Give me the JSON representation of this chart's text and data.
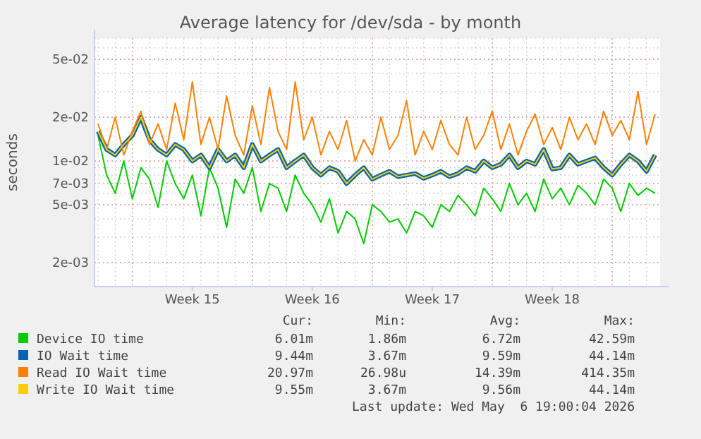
{
  "chart_data": {
    "type": "line",
    "title": "Average latency for /dev/sda - by month",
    "ylabel": "seconds",
    "log": "y",
    "grid": true,
    "legend": "bottom",
    "marker": "none",
    "line_style": "solid",
    "xlim": [
      "2026-04-03T19:00",
      "2026-05-06T19:00"
    ],
    "xticks": [
      {
        "value": "2026-04-06",
        "label": null
      },
      {
        "value": "2026-04-09T12:00",
        "label": "Week 15"
      },
      {
        "value": "2026-04-13",
        "label": null
      },
      {
        "value": "2026-04-16T12:00",
        "label": "Week 16"
      },
      {
        "value": "2026-04-20",
        "label": null
      },
      {
        "value": "2026-04-23T12:00",
        "label": "Week 17"
      },
      {
        "value": "2026-04-27",
        "label": null
      },
      {
        "value": "2026-04-30T12:00",
        "label": "Week 18"
      },
      {
        "value": "2026-05-04",
        "label": null
      }
    ],
    "ylim": [
      0.00137,
      0.07
    ],
    "yticks": [
      {
        "value": 0.002,
        "label": "2e-03"
      },
      {
        "value": 0.005,
        "label": "5e-03"
      },
      {
        "value": 0.007,
        "label": "7e-03"
      },
      {
        "value": 0.01,
        "label": "1e-02"
      },
      {
        "value": 0.02,
        "label": "2e-02"
      },
      {
        "value": 0.05,
        "label": "5e-02"
      }
    ],
    "x": [
      "2026-04-04T00:00",
      "2026-04-04T12:00",
      "2026-04-05T00:00",
      "2026-04-05T12:00",
      "2026-04-06T00:00",
      "2026-04-06T12:00",
      "2026-04-07T00:00",
      "2026-04-07T12:00",
      "2026-04-08T00:00",
      "2026-04-08T12:00",
      "2026-04-09T00:00",
      "2026-04-09T12:00",
      "2026-04-10T00:00",
      "2026-04-10T12:00",
      "2026-04-11T00:00",
      "2026-04-11T12:00",
      "2026-04-12T00:00",
      "2026-04-12T12:00",
      "2026-04-13T00:00",
      "2026-04-13T12:00",
      "2026-04-14T00:00",
      "2026-04-14T12:00",
      "2026-04-15T00:00",
      "2026-04-15T12:00",
      "2026-04-16T00:00",
      "2026-04-16T12:00",
      "2026-04-17T00:00",
      "2026-04-17T12:00",
      "2026-04-18T00:00",
      "2026-04-18T12:00",
      "2026-04-19T00:00",
      "2026-04-19T12:00",
      "2026-04-20T00:00",
      "2026-04-20T12:00",
      "2026-04-21T00:00",
      "2026-04-21T12:00",
      "2026-04-22T00:00",
      "2026-04-22T12:00",
      "2026-04-23T00:00",
      "2026-04-23T12:00",
      "2026-04-24T00:00",
      "2026-04-24T12:00",
      "2026-04-25T00:00",
      "2026-04-25T12:00",
      "2026-04-26T00:00",
      "2026-04-26T12:00",
      "2026-04-27T00:00",
      "2026-04-27T12:00",
      "2026-04-28T00:00",
      "2026-04-28T12:00",
      "2026-04-29T00:00",
      "2026-04-29T12:00",
      "2026-04-30T00:00",
      "2026-04-30T12:00",
      "2026-05-01T00:00",
      "2026-05-01T12:00",
      "2026-05-02T00:00",
      "2026-05-02T12:00",
      "2026-05-03T00:00",
      "2026-05-03T12:00",
      "2026-05-04T00:00",
      "2026-05-04T12:00",
      "2026-05-05T00:00",
      "2026-05-05T12:00",
      "2026-05-06T00:00",
      "2026-05-06T12:00"
    ],
    "series": [
      {
        "name": "Device IO time",
        "color": "#00cc00",
        "values": [
          0.015,
          0.008,
          0.006,
          0.01,
          0.0055,
          0.009,
          0.0075,
          0.0048,
          0.01,
          0.007,
          0.0055,
          0.008,
          0.0042,
          0.009,
          0.0065,
          0.0035,
          0.0075,
          0.006,
          0.009,
          0.0045,
          0.007,
          0.0065,
          0.0045,
          0.008,
          0.006,
          0.005,
          0.0038,
          0.0055,
          0.0032,
          0.0045,
          0.004,
          0.0027,
          0.005,
          0.0045,
          0.0038,
          0.004,
          0.0032,
          0.0045,
          0.0042,
          0.0035,
          0.005,
          0.0045,
          0.0058,
          0.005,
          0.0042,
          0.0065,
          0.0055,
          0.0045,
          0.007,
          0.005,
          0.006,
          0.0045,
          0.0075,
          0.0055,
          0.0065,
          0.005,
          0.0068,
          0.006,
          0.005,
          0.0075,
          0.0065,
          0.0045,
          0.007,
          0.0058,
          0.0065,
          0.006
        ]
      },
      {
        "name": "IO Wait time",
        "color": "#0066b3",
        "values": [
          0.016,
          0.012,
          0.011,
          0.013,
          0.015,
          0.02,
          0.014,
          0.012,
          0.011,
          0.013,
          0.012,
          0.01,
          0.011,
          0.009,
          0.012,
          0.01,
          0.011,
          0.009,
          0.013,
          0.01,
          0.011,
          0.012,
          0.009,
          0.01,
          0.011,
          0.009,
          0.008,
          0.009,
          0.0085,
          0.007,
          0.008,
          0.009,
          0.0075,
          0.008,
          0.0085,
          0.0078,
          0.008,
          0.0082,
          0.0076,
          0.008,
          0.0085,
          0.0078,
          0.0082,
          0.009,
          0.0085,
          0.01,
          0.009,
          0.0095,
          0.011,
          0.009,
          0.01,
          0.0095,
          0.012,
          0.0088,
          0.009,
          0.011,
          0.0095,
          0.01,
          0.0105,
          0.009,
          0.008,
          0.0095,
          0.011,
          0.01,
          0.0085,
          0.011
        ]
      },
      {
        "name": "Read IO Wait time",
        "color": "#ff8000",
        "values": [
          0.018,
          0.012,
          0.02,
          0.011,
          0.016,
          0.022,
          0.013,
          0.018,
          0.012,
          0.025,
          0.014,
          0.035,
          0.013,
          0.02,
          0.012,
          0.028,
          0.015,
          0.011,
          0.024,
          0.013,
          0.032,
          0.016,
          0.012,
          0.035,
          0.014,
          0.02,
          0.011,
          0.016,
          0.012,
          0.019,
          0.01,
          0.014,
          0.011,
          0.02,
          0.012,
          0.015,
          0.026,
          0.011,
          0.016,
          0.012,
          0.019,
          0.013,
          0.011,
          0.02,
          0.012,
          0.015,
          0.022,
          0.012,
          0.018,
          0.011,
          0.016,
          0.021,
          0.013,
          0.017,
          0.012,
          0.02,
          0.014,
          0.018,
          0.013,
          0.022,
          0.015,
          0.019,
          0.014,
          0.03,
          0.013,
          0.021
        ]
      },
      {
        "name": "Write IO Wait time",
        "color": "#ffcc00",
        "values": [
          0.016,
          0.012,
          0.011,
          0.013,
          0.015,
          0.02,
          0.014,
          0.012,
          0.011,
          0.013,
          0.012,
          0.01,
          0.011,
          0.009,
          0.012,
          0.01,
          0.011,
          0.009,
          0.013,
          0.01,
          0.011,
          0.012,
          0.009,
          0.01,
          0.011,
          0.009,
          0.008,
          0.009,
          0.0085,
          0.007,
          0.008,
          0.009,
          0.0075,
          0.008,
          0.0085,
          0.0078,
          0.008,
          0.0082,
          0.0076,
          0.008,
          0.0085,
          0.0078,
          0.0082,
          0.009,
          0.0085,
          0.01,
          0.009,
          0.0095,
          0.011,
          0.009,
          0.01,
          0.0095,
          0.012,
          0.0088,
          0.009,
          0.011,
          0.0095,
          0.01,
          0.0105,
          0.009,
          0.008,
          0.0095,
          0.011,
          0.01,
          0.0085,
          0.011
        ]
      }
    ],
    "annotations": [
      "Cur:",
      "Min:",
      "Avg:",
      "Max:",
      "6.01m",
      "1.86m",
      "6.72m",
      "42.59m",
      "9.44m",
      "3.67m",
      "9.59m",
      "44.14m",
      "20.97m",
      "26.98u",
      "14.39m",
      "414.35m",
      "9.55m",
      "3.67m",
      "9.56m",
      "44.14m",
      "Last update: Wed May  6 19:00:04 2026"
    ]
  }
}
